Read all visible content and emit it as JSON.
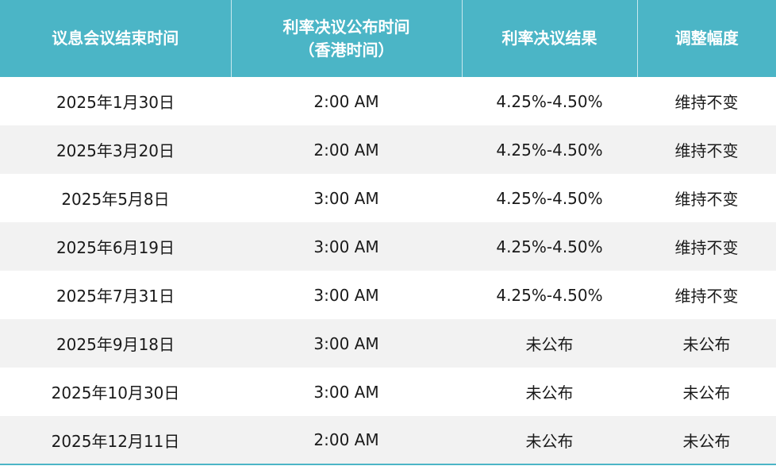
{
  "colors": {
    "header_bg": "#4bb5c6",
    "header_text": "#ffffff",
    "row_alt_bg": "#f2f2f2",
    "row_bg": "#ffffff",
    "text": "#1a1a1a"
  },
  "table": {
    "headers": [
      {
        "lines": [
          "议息会议结束时间"
        ]
      },
      {
        "lines": [
          "利率决议公布时间",
          "（香港时间）"
        ]
      },
      {
        "lines": [
          "利率决议结果"
        ]
      },
      {
        "lines": [
          "调整幅度"
        ]
      }
    ],
    "rows": [
      [
        "2025年1月30日",
        "2:00 AM",
        "4.25%-4.50%",
        "维持不变"
      ],
      [
        "2025年3月20日",
        "2:00 AM",
        "4.25%-4.50%",
        "维持不变"
      ],
      [
        "2025年5月8日",
        "3:00 AM",
        "4.25%-4.50%",
        "维持不变"
      ],
      [
        "2025年6月19日",
        "3:00 AM",
        "4.25%-4.50%",
        "维持不变"
      ],
      [
        "2025年7月31日",
        "3:00 AM",
        "4.25%-4.50%",
        "维持不变"
      ],
      [
        "2025年9月18日",
        "3:00 AM",
        "未公布",
        "未公布"
      ],
      [
        "2025年10月30日",
        "3:00 AM",
        "未公布",
        "未公布"
      ],
      [
        "2025年12月11日",
        "2:00 AM",
        "未公布",
        "未公布"
      ]
    ]
  }
}
